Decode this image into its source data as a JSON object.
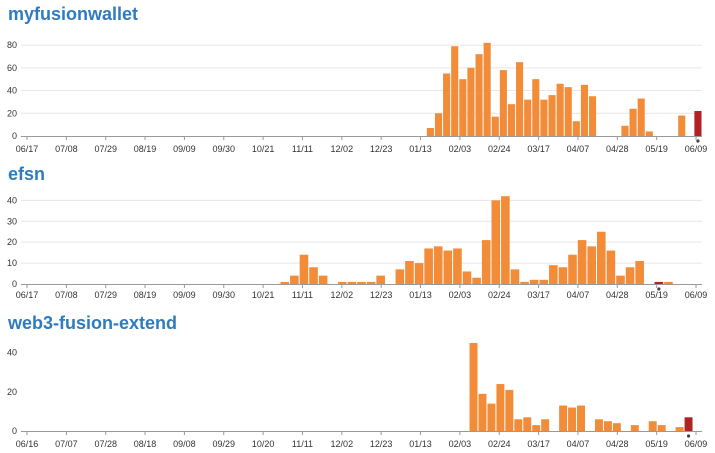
{
  "colors": {
    "title": "#2e7bbf",
    "bar": "#f28c38",
    "bar_highlight": "#b22222",
    "grid": "#e6e6e6",
    "axis": "#999999",
    "text": "#333333"
  },
  "chart_data": [
    {
      "type": "bar",
      "title": "myfusionwallet",
      "xlabel": "",
      "ylabel": "",
      "ylim": [
        0,
        88
      ],
      "yticks": [
        0,
        20,
        40,
        60,
        80
      ],
      "grid": true,
      "x_tick_labels": [
        "06/17",
        "07/08",
        "07/29",
        "08/19",
        "09/09",
        "09/30",
        "10/21",
        "11/11",
        "12/02",
        "12/23",
        "01/13",
        "02/03",
        "02/24",
        "03/17",
        "04/07",
        "04/28",
        "05/19",
        "06/09"
      ],
      "values": [
        0,
        0,
        0,
        0,
        0,
        0,
        0,
        0,
        0,
        0,
        0,
        0,
        0,
        0,
        0,
        0,
        0,
        0,
        0,
        0,
        0,
        0,
        0,
        0,
        0,
        0,
        0,
        0,
        0,
        0,
        0,
        0,
        0,
        0,
        0,
        0,
        0,
        0,
        0,
        0,
        0,
        0,
        0,
        0,
        0,
        0,
        0,
        0,
        0,
        0,
        7,
        20,
        55,
        79,
        50,
        60,
        72,
        82,
        17,
        58,
        28,
        65,
        32,
        50,
        32,
        36,
        46,
        43,
        13,
        45,
        35,
        0,
        0,
        0,
        9,
        24,
        33,
        4,
        0,
        0,
        0,
        18,
        0,
        22
      ],
      "highlight_index": 83
    },
    {
      "type": "bar",
      "title": "efsn",
      "xlabel": "",
      "ylabel": "",
      "ylim": [
        0,
        44
      ],
      "yticks": [
        0,
        10,
        20,
        30,
        40
      ],
      "grid": true,
      "x_tick_labels": [
        "06/17",
        "07/08",
        "07/29",
        "08/19",
        "09/09",
        "09/30",
        "10/21",
        "11/11",
        "12/02",
        "12/23",
        "01/13",
        "02/03",
        "02/24",
        "03/17",
        "04/07",
        "04/28",
        "05/19",
        "06/09"
      ],
      "values": [
        0,
        0,
        0,
        0,
        0,
        0,
        0,
        0,
        0,
        0,
        0,
        0,
        0,
        0,
        0,
        0,
        0,
        0,
        0,
        0,
        0,
        0,
        0,
        0,
        0,
        0,
        0,
        1,
        4,
        14,
        8,
        4,
        0,
        1,
        1,
        1,
        1,
        4,
        0,
        7,
        11,
        10,
        17,
        18,
        16,
        17,
        6,
        3,
        21,
        40,
        42,
        7,
        1,
        2,
        2,
        9,
        8,
        14,
        21,
        18,
        25,
        16,
        4,
        8,
        11,
        0,
        1,
        1,
        0,
        0,
        0
      ],
      "highlight_index": 66
    },
    {
      "type": "bar",
      "title": "web3-fusion-extend",
      "xlabel": "",
      "ylabel": "",
      "ylim": [
        0,
        46
      ],
      "yticks": [
        0,
        20,
        40
      ],
      "grid": false,
      "x_tick_labels": [
        "06/16",
        "07/07",
        "07/28",
        "08/18",
        "09/08",
        "09/29",
        "10/20",
        "11/11",
        "12/02",
        "12/23",
        "01/13",
        "02/03",
        "02/24",
        "03/17",
        "04/07",
        "04/28",
        "05/19",
        "06/09"
      ],
      "values": [
        0,
        0,
        0,
        0,
        0,
        0,
        0,
        0,
        0,
        0,
        0,
        0,
        0,
        0,
        0,
        0,
        0,
        0,
        0,
        0,
        0,
        0,
        0,
        0,
        0,
        0,
        0,
        0,
        0,
        0,
        0,
        0,
        0,
        0,
        0,
        0,
        0,
        0,
        0,
        0,
        0,
        0,
        0,
        0,
        0,
        0,
        0,
        0,
        0,
        0,
        45,
        19,
        14,
        24,
        21,
        6,
        7,
        3,
        6,
        0,
        13,
        12,
        13,
        0,
        6,
        5,
        4,
        0,
        3,
        0,
        5,
        3,
        0,
        2,
        7,
        0
      ],
      "highlight_index": 74
    }
  ]
}
